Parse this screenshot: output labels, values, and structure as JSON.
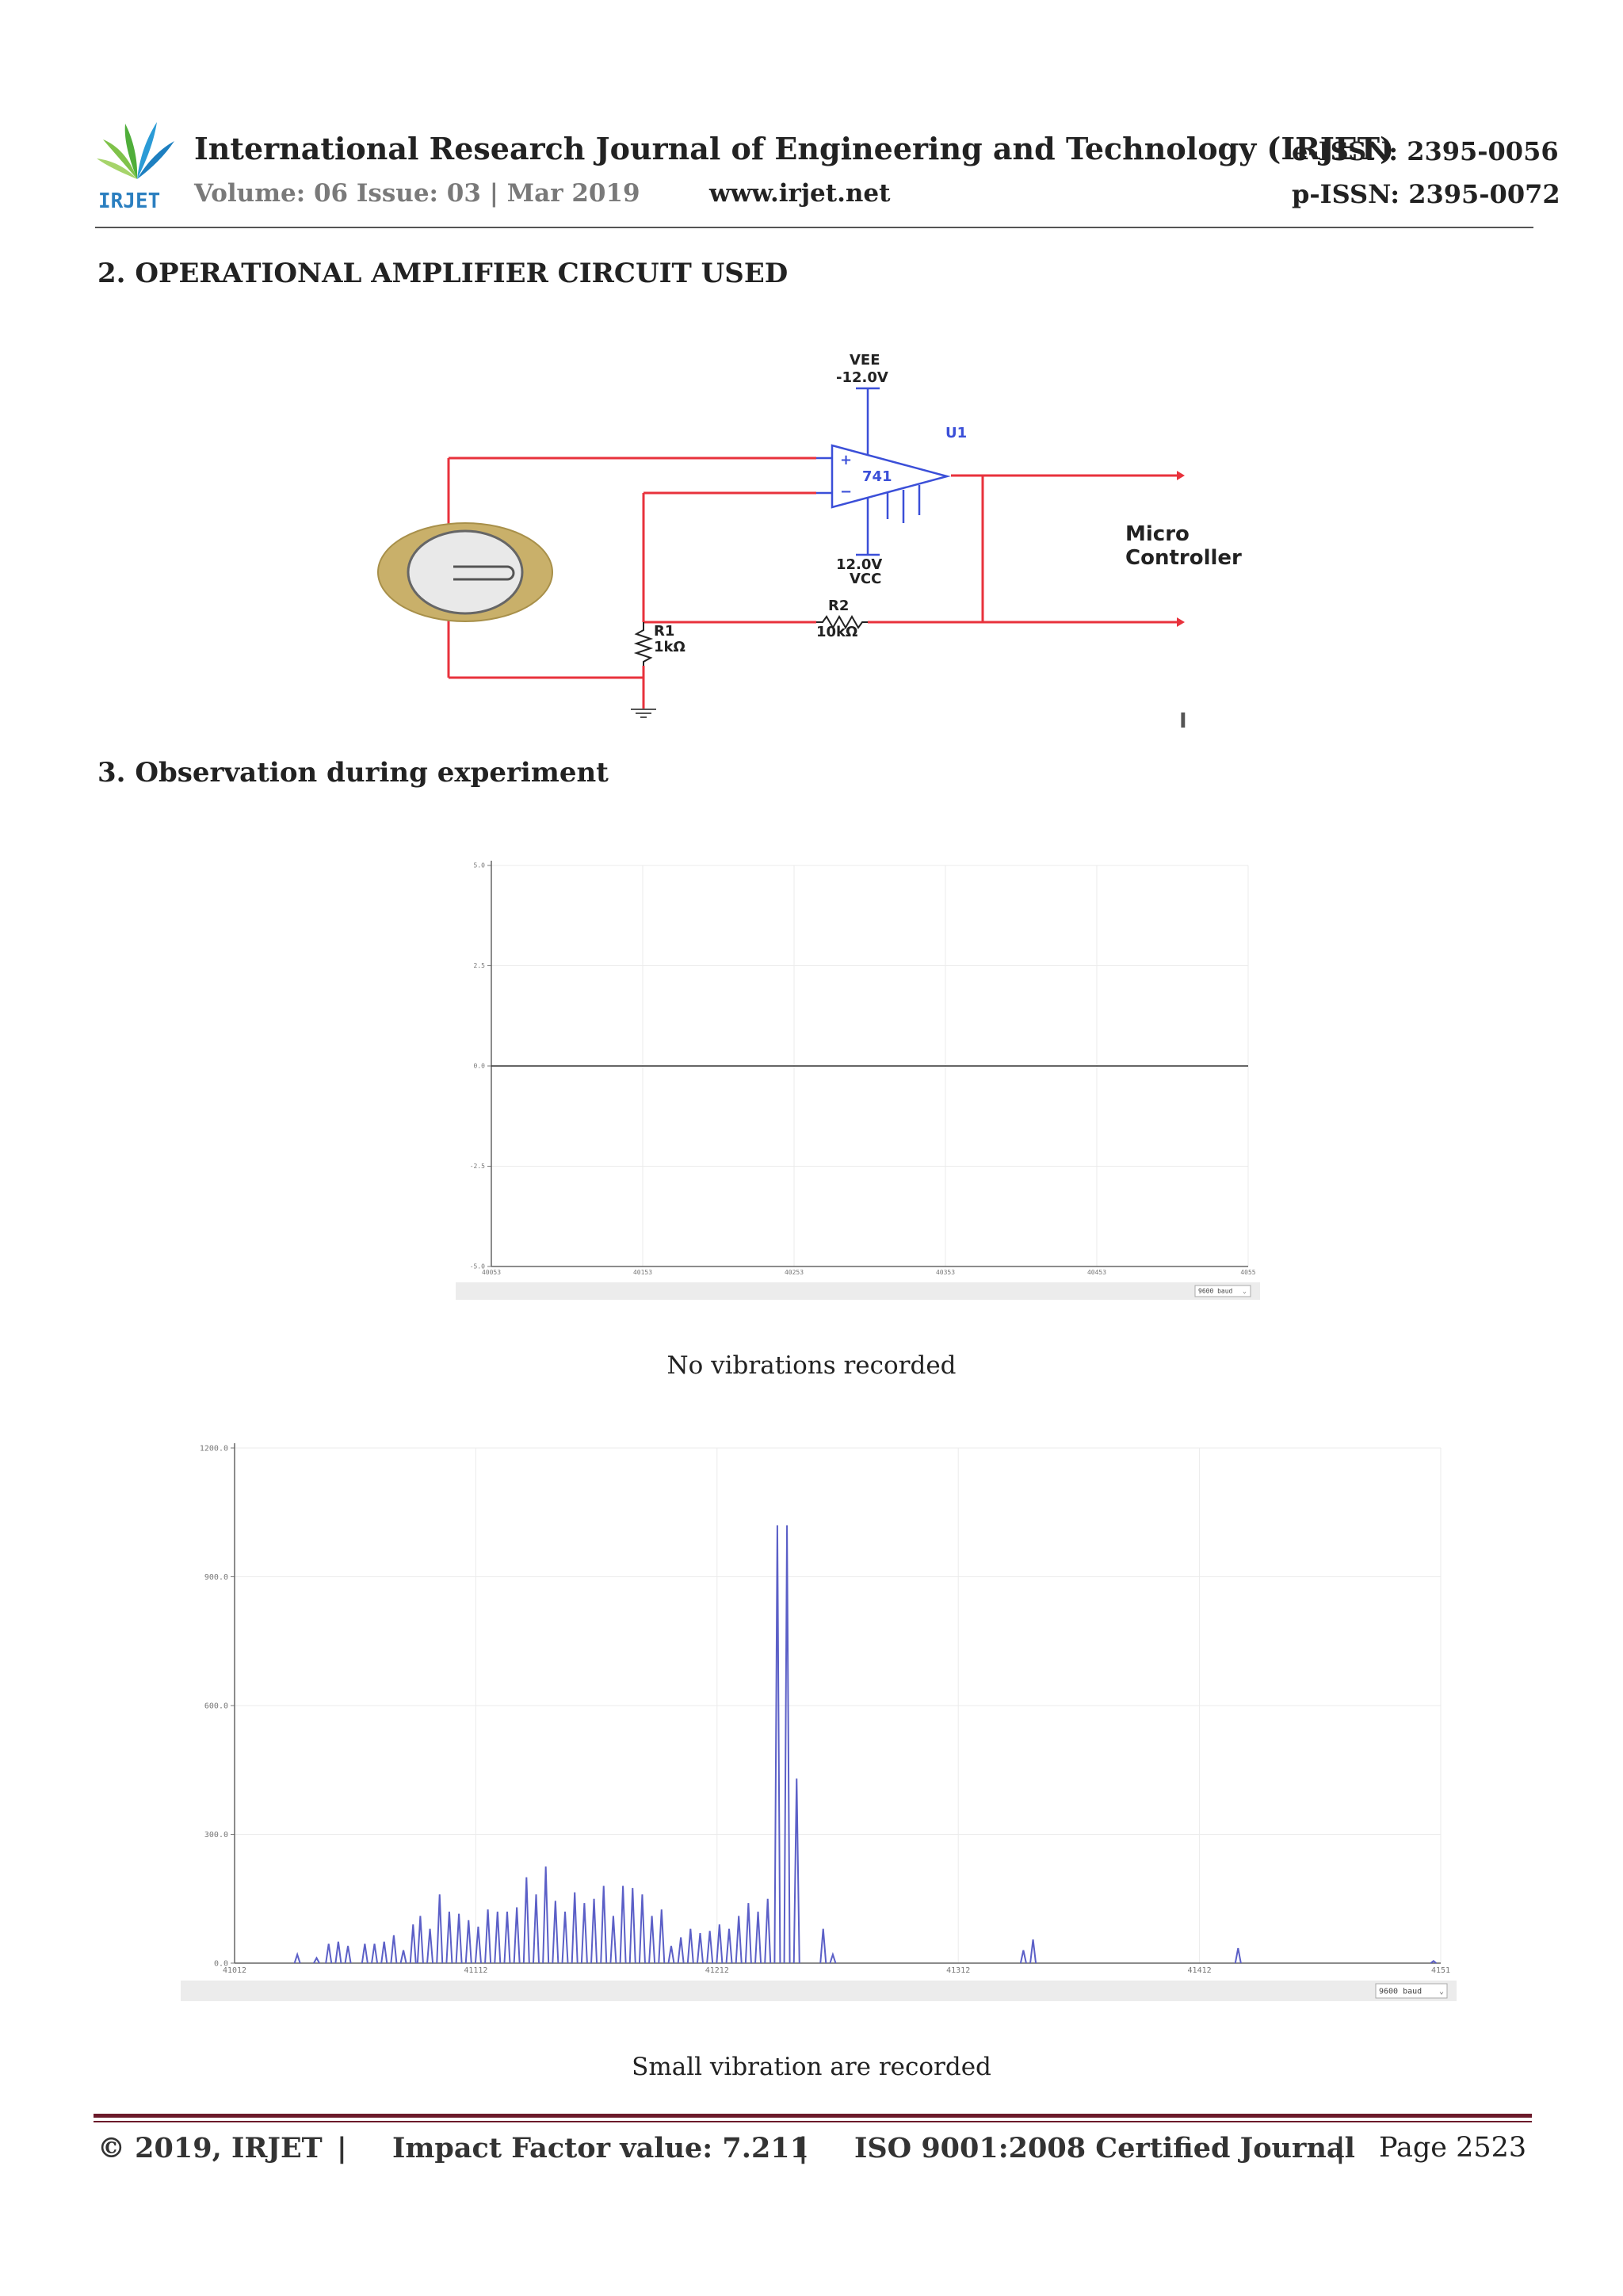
{
  "header": {
    "logo_text": "IRJET",
    "journal_title": "International Research Journal of Engineering and Technology (IRJET)",
    "e_issn": "e-ISSN: 2395-0056",
    "volume": "Volume: 06 Issue: 03 | Mar 2019",
    "url": "www.irjet.net",
    "p_issn": "p-ISSN: 2395-0072"
  },
  "sections": {
    "s2": "2. OPERATIONAL AMPLIFIER CIRCUIT USED",
    "s3": "3. Observation during experiment"
  },
  "circuit": {
    "vee_label": "VEE",
    "vee_value": "-12.0V",
    "u1": "U1",
    "opamp": "741",
    "vcc_value": "12.0V",
    "vcc_label": "VCC",
    "r1_label": "R1",
    "r1_value": "1kΩ",
    "r2_label": "R2",
    "r2_value": "10kΩ",
    "mcu_line1": "Micro",
    "mcu_line2": "Controller",
    "cursor": "I",
    "colors": {
      "wire": "#e8323c",
      "opamp": "#3b4fd8"
    }
  },
  "chart_data": [
    {
      "type": "line",
      "title": "",
      "caption": "No vibrations recorded",
      "ylim": [
        -5.0,
        5.0
      ],
      "yticks": [
        "5.0",
        "2.5",
        "0.0",
        "-2.5",
        "-5.0"
      ],
      "xticks": [
        "40053",
        "40153",
        "40253",
        "40353",
        "40453",
        "4055"
      ],
      "series": [
        {
          "name": "signal",
          "values": [
            0.0,
            0.0
          ]
        }
      ],
      "baud": "9600 baud",
      "grid": true
    },
    {
      "type": "line",
      "title": "",
      "caption": "Small vibration are recorded",
      "ylim": [
        0,
        1200
      ],
      "yticks": [
        "1200.0",
        "900.0",
        "600.0",
        "300.0",
        "0.0"
      ],
      "xticks": [
        "41012",
        "41112",
        "41212",
        "41312",
        "41412",
        "4151"
      ],
      "series": [
        {
          "name": "signal",
          "peaks": [
            [
              41038,
              20
            ],
            [
              41046,
              12
            ],
            [
              41051,
              45
            ],
            [
              41055,
              50
            ],
            [
              41059,
              40
            ],
            [
              41066,
              45
            ],
            [
              41070,
              45
            ],
            [
              41074,
              50
            ],
            [
              41078,
              65
            ],
            [
              41082,
              30
            ],
            [
              41086,
              90
            ],
            [
              41089,
              110
            ],
            [
              41093,
              80
            ],
            [
              41097,
              160
            ],
            [
              41101,
              120
            ],
            [
              41105,
              115
            ],
            [
              41109,
              100
            ],
            [
              41113,
              85
            ],
            [
              41117,
              125
            ],
            [
              41121,
              120
            ],
            [
              41125,
              120
            ],
            [
              41129,
              130
            ],
            [
              41133,
              200
            ],
            [
              41137,
              160
            ],
            [
              41141,
              225
            ],
            [
              41145,
              145
            ],
            [
              41149,
              120
            ],
            [
              41153,
              165
            ],
            [
              41157,
              140
            ],
            [
              41161,
              150
            ],
            [
              41165,
              180
            ],
            [
              41169,
              110
            ],
            [
              41173,
              180
            ],
            [
              41177,
              175
            ],
            [
              41181,
              160
            ],
            [
              41185,
              110
            ],
            [
              41189,
              125
            ],
            [
              41193,
              40
            ],
            [
              41197,
              60
            ],
            [
              41201,
              80
            ],
            [
              41205,
              70
            ],
            [
              41209,
              75
            ],
            [
              41213,
              90
            ],
            [
              41217,
              80
            ],
            [
              41221,
              110
            ],
            [
              41225,
              140
            ],
            [
              41229,
              120
            ],
            [
              41233,
              150
            ],
            [
              41237,
              1020
            ],
            [
              41241,
              1020
            ],
            [
              41245,
              430
            ],
            [
              41256,
              80
            ],
            [
              41260,
              20
            ],
            [
              41339,
              30
            ],
            [
              41343,
              55
            ],
            [
              41428,
              35
            ],
            [
              41509,
              5
            ]
          ]
        }
      ],
      "baud": "9600 baud",
      "grid": true
    }
  ],
  "footer": {
    "copyright": "© 2019, IRJET",
    "sep": "|",
    "impact": "Impact Factor value: 7.211",
    "iso": "ISO 9001:2008 Certified Journal",
    "page": "Page 2523"
  }
}
